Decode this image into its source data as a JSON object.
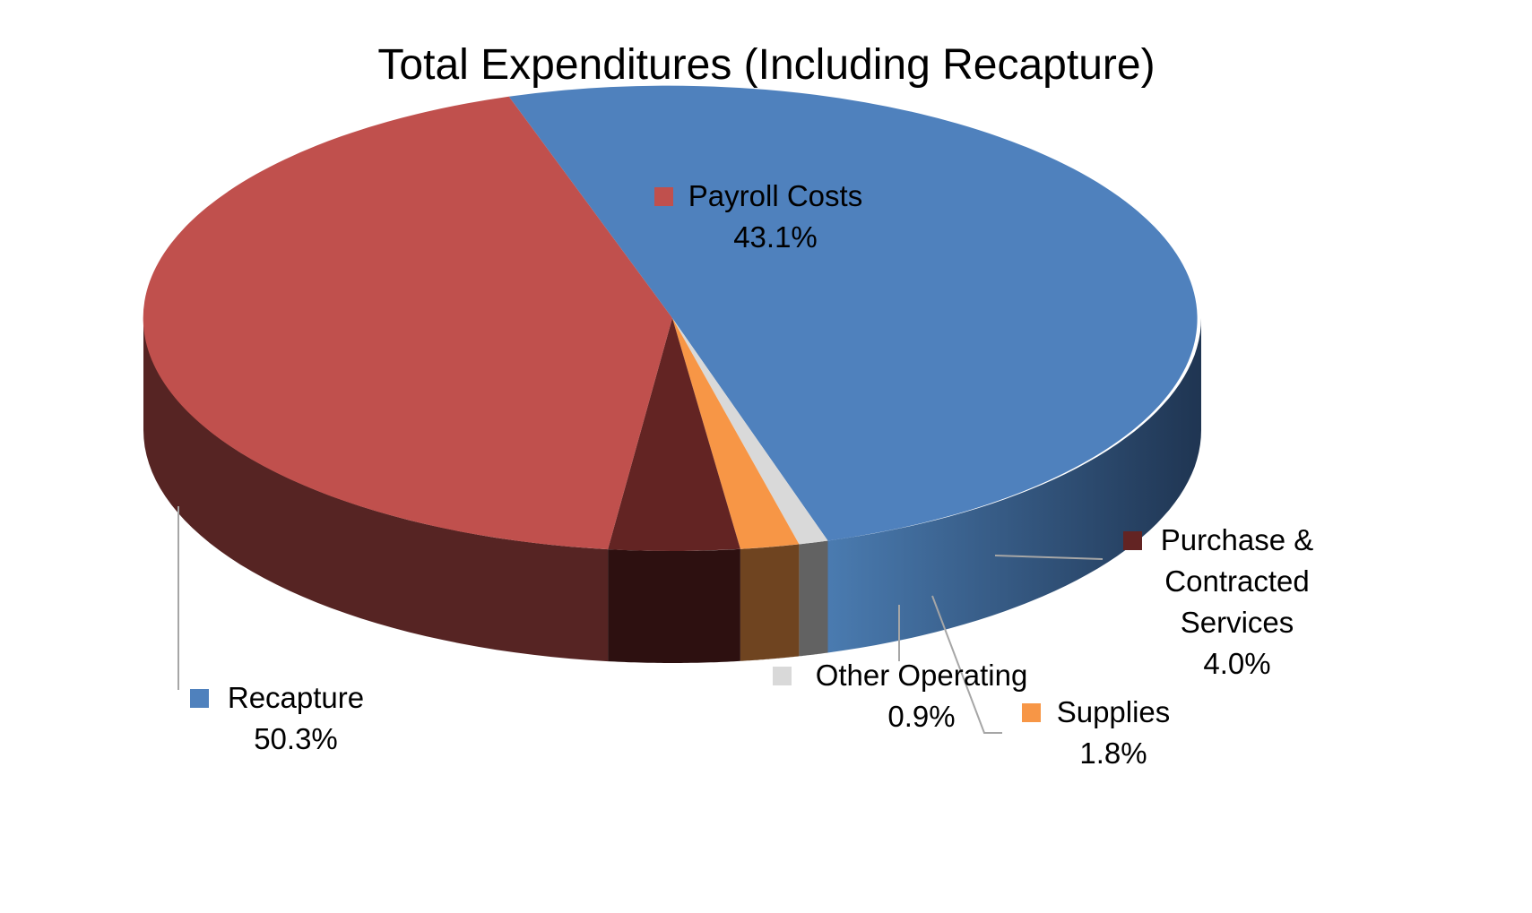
{
  "chart_data": {
    "type": "pie",
    "title": "Total Expenditures (Including Recapture)",
    "slices": [
      {
        "label": "Recapture",
        "value": 50.3,
        "value_label": "50.3%",
        "color": "#4F81BD"
      },
      {
        "label": "Other Operating",
        "value": 0.9,
        "value_label": "0.9%",
        "color": "#D9D9D9"
      },
      {
        "label": "Supplies",
        "value": 1.8,
        "value_label": "1.8%",
        "color": "#F79646"
      },
      {
        "label": "Purchase & Contracted Services",
        "label_lines": [
          "Purchase &",
          "Contracted",
          "Services"
        ],
        "value": 4.0,
        "value_label": "4.0%",
        "color": "#632423"
      },
      {
        "label": "Payroll Costs",
        "value": 43.1,
        "value_label": "43.1%",
        "color": "#C0504D"
      }
    ],
    "style": "3d-exploded-none",
    "legend": "data labels with leader lines"
  }
}
